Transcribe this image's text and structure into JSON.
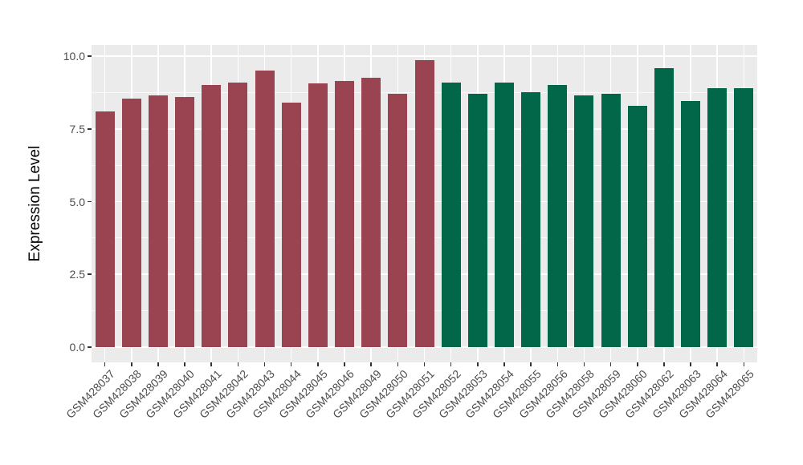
{
  "chart_data": {
    "type": "bar",
    "title": "",
    "xlabel": "",
    "ylabel": "Expression Level",
    "ylim": [
      0,
      10.4
    ],
    "grid": true,
    "legend": null,
    "panel_background": "#EBEBEB",
    "gridline_color": "#ffffff",
    "tick_text_color": "#4D4D4D",
    "axis_title_color": "#000000",
    "yticks": {
      "values": [
        0.0,
        2.5,
        5.0,
        7.5,
        10.0
      ],
      "labels": [
        "0.0",
        "2.5",
        "5.0",
        "7.5",
        "10.0"
      ]
    },
    "yticks_minor": [
      1.25,
      3.75,
      6.25,
      8.75
    ],
    "palette": {
      "A": "#9A4452",
      "B": "#026649"
    },
    "categories": [
      "GSM428037",
      "GSM428038",
      "GSM428039",
      "GSM428040",
      "GSM428041",
      "GSM428042",
      "GSM428043",
      "GSM428044",
      "GSM428045",
      "GSM428046",
      "GSM428049",
      "GSM428050",
      "GSM428051",
      "GSM428052",
      "GSM428053",
      "GSM428054",
      "GSM428055",
      "GSM428056",
      "GSM428058",
      "GSM428059",
      "GSM428060",
      "GSM428062",
      "GSM428063",
      "GSM428064",
      "GSM428065"
    ],
    "values": [
      8.1,
      8.55,
      8.65,
      8.6,
      9.0,
      9.1,
      9.5,
      8.4,
      9.05,
      9.15,
      9.25,
      8.7,
      9.85,
      9.1,
      8.7,
      9.1,
      8.75,
      9.0,
      8.65,
      8.7,
      8.3,
      9.6,
      8.45,
      8.9,
      8.9
    ],
    "groups": [
      "A",
      "A",
      "A",
      "A",
      "A",
      "A",
      "A",
      "A",
      "A",
      "A",
      "A",
      "A",
      "A",
      "B",
      "B",
      "B",
      "B",
      "B",
      "B",
      "B",
      "B",
      "B",
      "B",
      "B",
      "B"
    ]
  }
}
